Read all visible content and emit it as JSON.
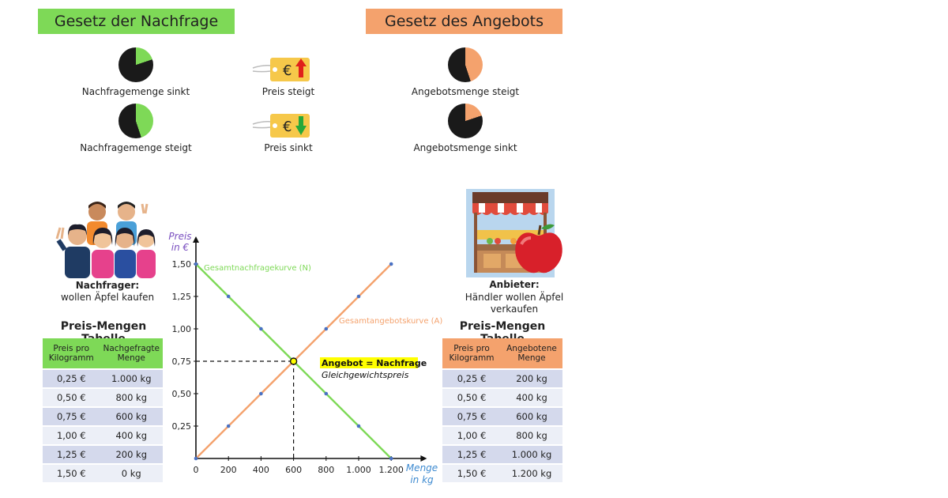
{
  "demand_law": {
    "title": "Gesetz der Nachfrage",
    "caption_decrease": "Nachfragemenge sinkt",
    "caption_increase": "Nachfragemenge steigt",
    "color": "#7ed957",
    "pie_fraction_decrease": 0.2,
    "pie_fraction_increase": 0.45
  },
  "supply_law": {
    "title": "Gesetz des Angebots",
    "caption_increase": "Angebotsmenge steigt",
    "caption_decrease": "Angebotsmenge sinkt",
    "color": "#f4a26d",
    "pie_fraction_increase": 0.45,
    "pie_fraction_decrease": 0.2
  },
  "price_tags": {
    "up_label": "Preis steigt",
    "down_label": "Preis sinkt",
    "currency_symbol": "€"
  },
  "buyers": {
    "heading": "Nachfrager:",
    "text": "wollen Äpfel kaufen"
  },
  "sellers": {
    "heading": "Anbieter:",
    "text_line1": "Händler wollen Äpfel",
    "text_line2": "verkaufen"
  },
  "demand_table": {
    "title": "Preis-Mengen Tabelle",
    "headers": [
      "Preis pro Kilogramm",
      "Nachgefragte Menge"
    ],
    "rows": [
      [
        "0,25 €",
        "1.000 kg"
      ],
      [
        "0,50 €",
        "800 kg"
      ],
      [
        "0,75 €",
        "600 kg"
      ],
      [
        "1,00 €",
        "400 kg"
      ],
      [
        "1,25 €",
        "200 kg"
      ],
      [
        "1,50 €",
        "0 kg"
      ]
    ]
  },
  "supply_table": {
    "title": "Preis-Mengen Tabelle",
    "headers": [
      "Preis pro Kilogramm",
      "Angebotene Menge"
    ],
    "rows": [
      [
        "0,25 €",
        "200 kg"
      ],
      [
        "0,50 €",
        "400 kg"
      ],
      [
        "0,75 €",
        "600 kg"
      ],
      [
        "1,00 €",
        "800 kg"
      ],
      [
        "1,25 €",
        "1.000 kg"
      ],
      [
        "1,50 €",
        "1.200 kg"
      ]
    ]
  },
  "chart_data": {
    "type": "line",
    "ylabel_line1": "Preis",
    "ylabel_line2": "in €",
    "xlabel_line1": "Menge",
    "xlabel_line2": "in kg",
    "x_ticks": [
      "0",
      "200",
      "400",
      "600",
      "800",
      "1.000",
      "1.200"
    ],
    "y_ticks": [
      "0,25",
      "0,50",
      "0,75",
      "1,00",
      "1,25",
      "1,50"
    ],
    "xlim": [
      0,
      1400
    ],
    "ylim": [
      0,
      1.75
    ],
    "series": [
      {
        "name": "Gesamtnachfragekurve (N)",
        "color": "#7ed957",
        "x": [
          0,
          200,
          400,
          600,
          800,
          1000,
          1200
        ],
        "y": [
          1.5,
          1.25,
          1.0,
          0.75,
          0.5,
          0.25,
          0.0
        ]
      },
      {
        "name": "Gesamtangebotskurve (A)",
        "color": "#f4a26d",
        "x": [
          0,
          200,
          400,
          600,
          800,
          1000,
          1200
        ],
        "y": [
          0.0,
          0.25,
          0.5,
          0.75,
          1.0,
          1.25,
          1.5
        ]
      }
    ],
    "point_color": "#4a72c4",
    "equilibrium": {
      "x": 600,
      "y": 0.75,
      "label": "Angebot = Nachfrage",
      "sublabel": "Gleichgewichtspreis",
      "highlight_color": "#ffff00"
    }
  }
}
